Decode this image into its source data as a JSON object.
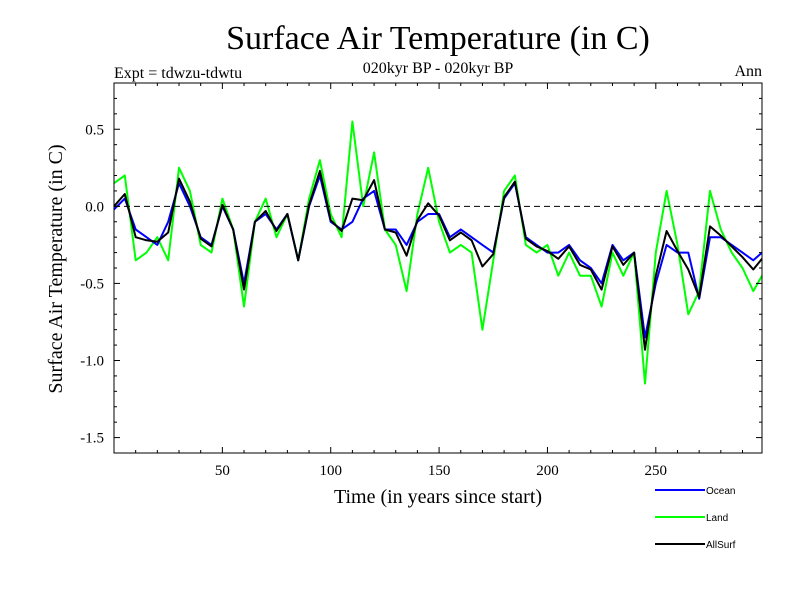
{
  "chart_data": {
    "type": "line",
    "title": "Surface Air Temperature (in C)",
    "subtitle": "020kyr BP - 020kyr BP",
    "left_label": "Expt = tdwzu-tdwtu",
    "right_label": "Ann",
    "xlabel": "Time (in years since start)",
    "ylabel": "Surface Air Temperature (in C)",
    "xlim": [
      0,
      299
    ],
    "ylim": [
      -1.6,
      0.8
    ],
    "xticks": [
      50,
      100,
      150,
      200,
      250
    ],
    "yticks": [
      0.5,
      0.0,
      -0.5,
      -1.0,
      -1.5
    ],
    "ytick_labels": [
      "0.5",
      "0.0",
      "-0.5",
      "-1.0",
      "-1.5"
    ],
    "zero_line": "dashed",
    "legend_placement": "bottom-right",
    "series": [
      {
        "name": "Ocean",
        "color": "#0000ff",
        "x": [
          0,
          5,
          10,
          15,
          20,
          25,
          30,
          35,
          40,
          45,
          50,
          55,
          60,
          65,
          70,
          75,
          80,
          85,
          90,
          95,
          100,
          105,
          110,
          115,
          120,
          125,
          130,
          135,
          140,
          145,
          150,
          155,
          160,
          165,
          170,
          175,
          180,
          185,
          190,
          195,
          200,
          205,
          210,
          215,
          220,
          225,
          230,
          235,
          240,
          245,
          250,
          255,
          260,
          265,
          270,
          275,
          280,
          285,
          290,
          295,
          299
        ],
        "values": [
          -0.02,
          0.05,
          -0.15,
          -0.2,
          -0.25,
          -0.1,
          0.15,
          0.0,
          -0.2,
          -0.25,
          0.0,
          -0.15,
          -0.5,
          -0.1,
          -0.05,
          -0.15,
          -0.05,
          -0.35,
          0.0,
          0.2,
          -0.1,
          -0.15,
          -0.1,
          0.05,
          0.1,
          -0.15,
          -0.15,
          -0.25,
          -0.1,
          -0.05,
          -0.05,
          -0.2,
          -0.15,
          -0.2,
          -0.25,
          -0.3,
          0.05,
          0.15,
          -0.2,
          -0.25,
          -0.3,
          -0.3,
          -0.25,
          -0.35,
          -0.4,
          -0.5,
          -0.25,
          -0.35,
          -0.3,
          -0.85,
          -0.5,
          -0.25,
          -0.3,
          -0.3,
          -0.6,
          -0.2,
          -0.2,
          -0.25,
          -0.3,
          -0.35,
          -0.3
        ]
      },
      {
        "name": "Land",
        "color": "#00ff00",
        "x": [
          0,
          5,
          10,
          15,
          20,
          25,
          30,
          35,
          40,
          45,
          50,
          55,
          60,
          65,
          70,
          75,
          80,
          85,
          90,
          95,
          100,
          105,
          110,
          115,
          120,
          125,
          130,
          135,
          140,
          145,
          150,
          155,
          160,
          165,
          170,
          175,
          180,
          185,
          190,
          195,
          200,
          205,
          210,
          215,
          220,
          225,
          230,
          235,
          240,
          245,
          250,
          255,
          260,
          265,
          270,
          275,
          280,
          285,
          290,
          295,
          299
        ],
        "values": [
          0.15,
          0.2,
          -0.35,
          -0.3,
          -0.2,
          -0.35,
          0.25,
          0.1,
          -0.25,
          -0.3,
          0.05,
          -0.15,
          -0.65,
          -0.1,
          0.05,
          -0.2,
          -0.05,
          -0.35,
          0.05,
          0.3,
          -0.05,
          -0.2,
          0.55,
          0.0,
          0.35,
          -0.15,
          -0.25,
          -0.55,
          -0.05,
          0.25,
          -0.1,
          -0.3,
          -0.25,
          -0.3,
          -0.8,
          -0.35,
          0.1,
          0.2,
          -0.25,
          -0.3,
          -0.25,
          -0.45,
          -0.3,
          -0.45,
          -0.45,
          -0.65,
          -0.3,
          -0.45,
          -0.3,
          -1.15,
          -0.3,
          0.1,
          -0.25,
          -0.7,
          -0.55,
          0.1,
          -0.15,
          -0.3,
          -0.4,
          -0.55,
          -0.45
        ]
      },
      {
        "name": "AllSurf",
        "color": "#000000",
        "x": [
          0,
          5,
          10,
          15,
          20,
          25,
          30,
          35,
          40,
          45,
          50,
          55,
          60,
          65,
          70,
          75,
          80,
          85,
          90,
          95,
          100,
          105,
          110,
          115,
          120,
          125,
          130,
          135,
          140,
          145,
          150,
          155,
          160,
          165,
          170,
          175,
          180,
          185,
          190,
          195,
          200,
          205,
          210,
          215,
          220,
          225,
          230,
          235,
          240,
          245,
          250,
          255,
          260,
          265,
          270,
          275,
          280,
          285,
          290,
          295,
          299
        ],
        "values": [
          0.0,
          0.08,
          -0.2,
          -0.22,
          -0.23,
          -0.17,
          0.18,
          0.03,
          -0.21,
          -0.26,
          0.01,
          -0.15,
          -0.54,
          -0.1,
          -0.03,
          -0.16,
          -0.05,
          -0.35,
          0.01,
          0.23,
          -0.09,
          -0.16,
          0.05,
          0.04,
          0.17,
          -0.15,
          -0.17,
          -0.32,
          -0.09,
          0.02,
          -0.06,
          -0.22,
          -0.17,
          -0.22,
          -0.39,
          -0.31,
          0.06,
          0.16,
          -0.21,
          -0.26,
          -0.29,
          -0.34,
          -0.26,
          -0.38,
          -0.41,
          -0.54,
          -0.26,
          -0.38,
          -0.3,
          -0.93,
          -0.45,
          -0.16,
          -0.29,
          -0.41,
          -0.59,
          -0.13,
          -0.19,
          -0.26,
          -0.33,
          -0.41,
          -0.34
        ]
      }
    ]
  }
}
